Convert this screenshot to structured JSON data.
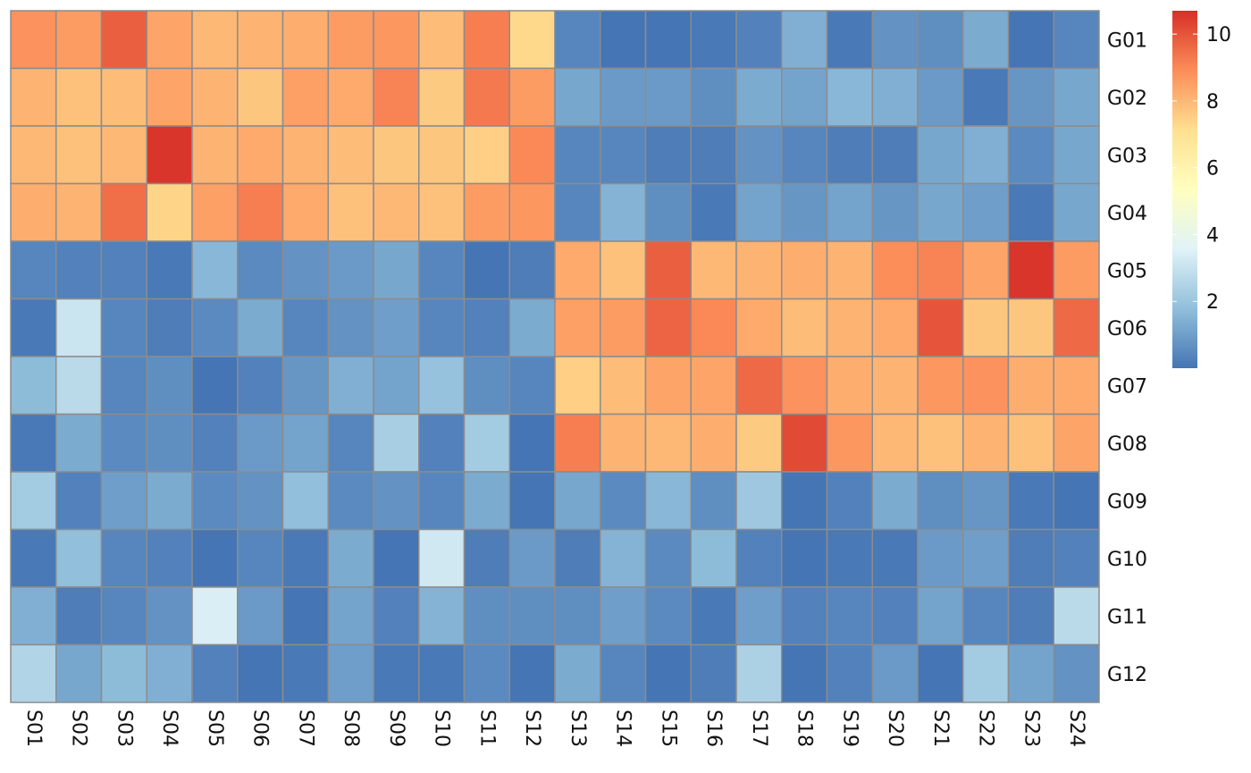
{
  "chart_data": {
    "type": "heatmap",
    "title": "",
    "xlabel": "",
    "ylabel": "",
    "columns": [
      "S01",
      "S02",
      "S03",
      "S04",
      "S05",
      "S06",
      "S07",
      "S08",
      "S09",
      "S10",
      "S11",
      "S12",
      "S13",
      "S14",
      "S15",
      "S16",
      "S17",
      "S18",
      "S19",
      "S20",
      "S21",
      "S22",
      "S23",
      "S24"
    ],
    "rows": [
      "G01",
      "G02",
      "G03",
      "G04",
      "G05",
      "G06",
      "G07",
      "G08",
      "G09",
      "G10",
      "G11",
      "G12"
    ],
    "values": [
      [
        8.8,
        8.6,
        9.8,
        8.4,
        8.0,
        8.1,
        8.2,
        8.6,
        8.7,
        7.9,
        9.2,
        7.3,
        0.4,
        0.0,
        0.0,
        0.1,
        0.3,
        1.4,
        0.1,
        0.7,
        0.6,
        1.3,
        0.0,
        0.4
      ],
      [
        8.1,
        7.8,
        7.9,
        8.4,
        8.1,
        7.7,
        8.5,
        8.3,
        9.1,
        7.6,
        9.3,
        8.6,
        1.2,
        0.9,
        0.9,
        0.6,
        1.3,
        1.1,
        1.6,
        1.4,
        0.9,
        0.1,
        0.8,
        1.2
      ],
      [
        8.0,
        7.8,
        8.0,
        10.6,
        8.1,
        8.3,
        8.1,
        7.9,
        7.7,
        7.7,
        7.5,
        9.0,
        0.4,
        0.4,
        0.2,
        0.2,
        0.7,
        0.4,
        0.2,
        0.2,
        1.2,
        1.4,
        0.5,
        1.2
      ],
      [
        8.2,
        8.1,
        9.5,
        7.4,
        8.5,
        9.2,
        8.3,
        7.8,
        8.0,
        7.8,
        8.6,
        8.7,
        0.4,
        1.5,
        0.6,
        0.1,
        1.1,
        0.8,
        1.1,
        0.8,
        1.2,
        1.0,
        0.1,
        1.2
      ],
      [
        0.4,
        0.3,
        0.3,
        0.1,
        1.6,
        0.5,
        0.7,
        0.9,
        1.2,
        0.4,
        0.0,
        0.2,
        8.3,
        7.8,
        9.8,
        8.0,
        8.1,
        8.2,
        8.1,
        8.9,
        9.1,
        8.4,
        10.6,
        8.6
      ],
      [
        0.1,
        3.1,
        0.4,
        0.2,
        0.5,
        1.3,
        0.4,
        0.7,
        1.0,
        0.4,
        0.3,
        1.3,
        8.5,
        8.6,
        9.7,
        9.0,
        8.3,
        7.9,
        8.1,
        8.3,
        10.0,
        7.7,
        7.7,
        9.6
      ],
      [
        1.7,
        2.7,
        0.4,
        0.6,
        0.0,
        0.3,
        0.8,
        1.4,
        1.1,
        1.9,
        0.6,
        0.4,
        7.5,
        7.9,
        8.4,
        8.4,
        9.6,
        8.8,
        8.2,
        8.1,
        8.7,
        8.8,
        8.2,
        8.3
      ],
      [
        0.1,
        1.3,
        0.5,
        0.6,
        0.3,
        0.9,
        1.1,
        0.4,
        2.3,
        0.3,
        2.2,
        0.0,
        9.2,
        8.1,
        8.0,
        8.2,
        7.6,
        10.2,
        8.7,
        8.0,
        7.8,
        8.1,
        7.8,
        8.4
      ],
      [
        2.2,
        0.3,
        1.0,
        1.3,
        0.5,
        0.7,
        1.8,
        0.5,
        0.7,
        0.4,
        1.3,
        0.0,
        1.2,
        0.5,
        1.6,
        0.6,
        2.1,
        0.0,
        0.3,
        1.3,
        0.6,
        0.8,
        0.1,
        0.0
      ],
      [
        0.1,
        1.8,
        0.4,
        0.3,
        0.0,
        0.4,
        0.1,
        1.3,
        0.0,
        3.2,
        0.2,
        0.9,
        0.2,
        1.5,
        0.5,
        1.7,
        0.3,
        0.0,
        0.1,
        0.1,
        0.9,
        1.0,
        0.2,
        0.3
      ],
      [
        1.4,
        0.2,
        0.4,
        0.7,
        3.4,
        0.9,
        0.0,
        1.1,
        0.3,
        1.5,
        0.6,
        0.6,
        0.6,
        1.0,
        0.5,
        0.1,
        1.0,
        0.3,
        0.4,
        0.3,
        1.1,
        0.4,
        0.2,
        2.7
      ],
      [
        2.5,
        1.2,
        1.7,
        1.4,
        0.3,
        0.0,
        0.1,
        1.0,
        0.1,
        0.1,
        0.5,
        0.0,
        1.3,
        0.4,
        0.0,
        0.2,
        2.4,
        0.0,
        0.3,
        0.9,
        0.0,
        2.2,
        1.1,
        0.7
      ]
    ],
    "colorbar": {
      "min": 0,
      "max": 10.7,
      "ticks": [
        2,
        4,
        6,
        8,
        10
      ],
      "tick_labels": [
        "2",
        "4",
        "6",
        "8",
        "10"
      ],
      "colors": [
        "#4575b4",
        "#91bfdb",
        "#e0f3f8",
        "#ffffbf",
        "#fee090",
        "#fc8d59",
        "#d73027"
      ]
    },
    "cell_border_color": "#8c8c8c",
    "grid": false,
    "legend": "right"
  }
}
